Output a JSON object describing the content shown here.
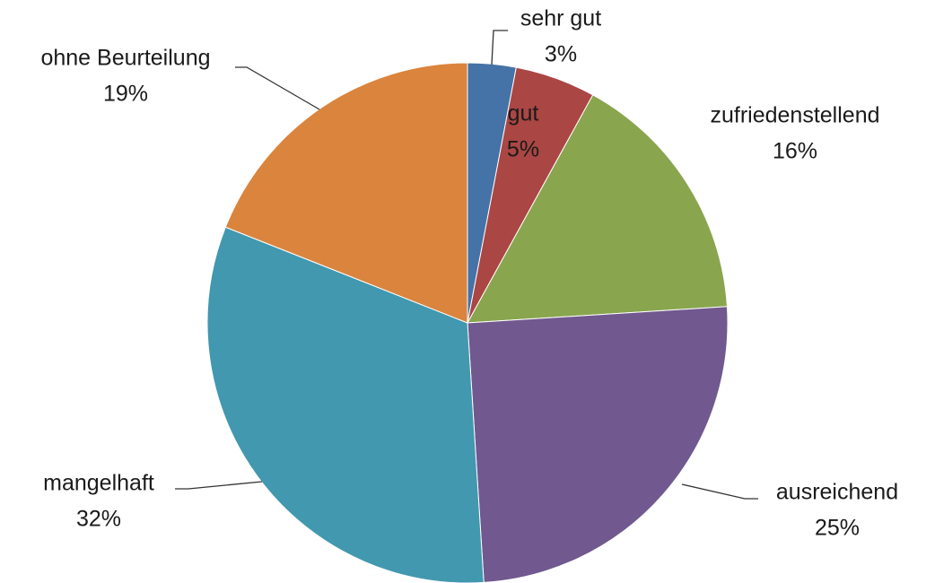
{
  "chart_data": {
    "type": "pie",
    "categories": [
      "sehr gut",
      "gut",
      "zufriedenstellend",
      "ausreichend",
      "mangelhaft",
      "ohne Beurteilung"
    ],
    "values": [
      3,
      5,
      16,
      25,
      32,
      19
    ],
    "value_labels": [
      "3%",
      "5%",
      "16%",
      "25%",
      "32%",
      "19%"
    ],
    "colors": [
      "#4572a7",
      "#aa4643",
      "#89a54e",
      "#71588f",
      "#4198af",
      "#db843d"
    ]
  }
}
